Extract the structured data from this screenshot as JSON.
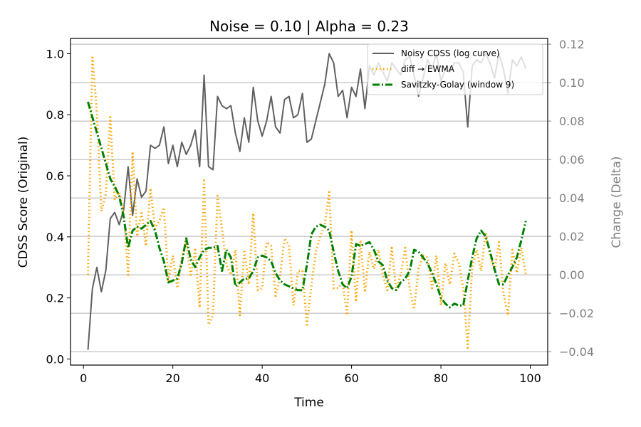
{
  "title": "Noise = 0.10 | Alpha = 0.23",
  "chart_data": {
    "type": "line",
    "title": "Noise = 0.10 | Alpha = 0.23",
    "xlabel": "Time",
    "ylabel_left": "CDSS Score (Original)",
    "ylabel_right": "Change (Delta)",
    "xlim": [
      -2.9,
      103.9
    ],
    "ylim_left": [
      -0.02,
      1.05
    ],
    "ylim_right": [
      -0.047,
      0.123
    ],
    "x_ticks": [
      0,
      20,
      40,
      60,
      80,
      100
    ],
    "y_ticks_left": [
      0.0,
      0.2,
      0.4,
      0.6,
      0.8,
      1.0
    ],
    "y_ticks_right": [
      -0.04,
      -0.02,
      0.0,
      0.02,
      0.04,
      0.06,
      0.08,
      0.1,
      0.12
    ],
    "y_tick_labels_left": [
      "0.0",
      "0.2",
      "0.4",
      "0.6",
      "0.8",
      "1.0"
    ],
    "y_tick_labels_right": [
      "−0.04",
      "−0.02",
      "0.00",
      "0.02",
      "0.04",
      "0.06",
      "0.08",
      "0.10",
      "0.12"
    ],
    "grid": "right-axis horizontal gridlines",
    "legend_position": "top-right",
    "series": [
      {
        "name": "Noisy CDSS (log curve)",
        "axis": "left",
        "color": "#606060",
        "style": "solid",
        "x": [
          1,
          2,
          3,
          4,
          5,
          6,
          7,
          8,
          9,
          10,
          11,
          12,
          13,
          14,
          15,
          16,
          17,
          18,
          19,
          20,
          21,
          22,
          23,
          24,
          25,
          26,
          27,
          28,
          29,
          30,
          31,
          32,
          33,
          34,
          35,
          36,
          37,
          38,
          39,
          40,
          41,
          42,
          43,
          44,
          45,
          46,
          47,
          48,
          49,
          50,
          51,
          52,
          53,
          54,
          55,
          56,
          57,
          58,
          59,
          60,
          61,
          62,
          63,
          64,
          65,
          66,
          67,
          68,
          69,
          70,
          71,
          72,
          73,
          74,
          75,
          76,
          77,
          78,
          79,
          80,
          81,
          82,
          83,
          84,
          85,
          86,
          87,
          88,
          89,
          90,
          91,
          92,
          93,
          94,
          95,
          96,
          97,
          98,
          99
        ],
        "values": [
          0.03,
          0.23,
          0.3,
          0.22,
          0.29,
          0.46,
          0.48,
          0.44,
          0.49,
          0.63,
          0.47,
          0.59,
          0.53,
          0.55,
          0.7,
          0.69,
          0.7,
          0.76,
          0.64,
          0.7,
          0.63,
          0.71,
          0.67,
          0.7,
          0.75,
          0.63,
          0.93,
          0.63,
          0.62,
          0.86,
          0.83,
          0.82,
          0.83,
          0.74,
          0.68,
          0.79,
          0.71,
          0.89,
          0.78,
          0.73,
          0.78,
          0.86,
          0.76,
          0.74,
          0.85,
          0.86,
          0.79,
          0.8,
          0.87,
          0.71,
          0.72,
          0.78,
          0.84,
          0.9,
          1.0,
          0.97,
          0.86,
          0.88,
          0.79,
          0.89,
          0.86,
          0.95,
          0.82,
          0.96,
          0.93,
          0.97,
          0.94,
          0.91,
          0.97,
          0.95,
          0.93,
          0.98,
          0.99,
          0.93,
          0.86,
          0.92,
          0.98,
          0.95,
          1.0,
          0.91,
          0.95,
          0.94,
          0.97,
          0.97,
          0.94,
          0.76,
          0.96,
          0.98,
          0.97,
          1.0,
          0.97,
          0.92,
          1.0,
          0.95,
          0.87,
          0.98,
          0.96,
          0.99,
          0.95
        ]
      },
      {
        "name": "diff → EWMA",
        "axis": "right",
        "color": "#FFA500",
        "style": "dotted",
        "x": [
          1,
          2,
          3,
          4,
          5,
          6,
          7,
          8,
          9,
          10,
          11,
          12,
          13,
          14,
          15,
          16,
          17,
          18,
          19,
          20,
          21,
          22,
          23,
          24,
          25,
          26,
          27,
          28,
          29,
          30,
          31,
          32,
          33,
          34,
          35,
          36,
          37,
          38,
          39,
          40,
          41,
          42,
          43,
          44,
          45,
          46,
          47,
          48,
          49,
          50,
          51,
          52,
          53,
          54,
          55,
          56,
          57,
          58,
          59,
          60,
          61,
          62,
          63,
          64,
          65,
          66,
          67,
          68,
          69,
          70,
          71,
          72,
          73,
          74,
          75,
          76,
          77,
          78,
          79,
          80,
          81,
          82,
          83,
          84,
          85,
          86,
          87,
          88,
          89,
          90,
          91,
          92,
          93,
          94,
          95,
          96,
          97,
          98,
          99
        ],
        "values": [
          0.0,
          0.114,
          0.085,
          0.033,
          0.042,
          0.082,
          0.039,
          0.043,
          0.033,
          0.0,
          0.064,
          0.02,
          0.033,
          0.015,
          0.045,
          0.024,
          0.028,
          0.035,
          -0.003,
          0.01,
          -0.007,
          0.009,
          0.017,
          0.0,
          0.013,
          -0.017,
          0.049,
          -0.026,
          -0.021,
          0.041,
          0.024,
          0.005,
          0.0,
          0.013,
          -0.021,
          0.013,
          -0.005,
          0.032,
          -0.008,
          -0.007,
          0.017,
          0.015,
          -0.011,
          -0.001,
          0.019,
          0.015,
          -0.016,
          0.002,
          0.002,
          -0.026,
          -0.006,
          0.012,
          0.02,
          0.026,
          0.043,
          -0.007,
          -0.007,
          -0.004,
          -0.021,
          0.023,
          -0.014,
          0.018,
          -0.009,
          0.012,
          0.003,
          0.013,
          0.0,
          -0.008,
          0.014,
          -0.008,
          0.0,
          0.014,
          -0.007,
          -0.018,
          0.003,
          0.01,
          0.009,
          -0.007,
          0.01,
          -0.016,
          0.006,
          -0.005,
          0.011,
          0.006,
          -0.007,
          -0.038,
          0.004,
          0.013,
          0.002,
          0.022,
          0.01,
          0.002,
          0.017,
          -0.01,
          -0.021,
          0.013,
          0.001,
          0.014,
          0.0
        ]
      },
      {
        "name": "Savitzky-Golay (window 9)",
        "axis": "right",
        "color": "#008000",
        "style": "dashdot",
        "x": [
          1,
          2,
          3,
          4,
          5,
          6,
          7,
          8,
          9,
          10,
          11,
          12,
          13,
          14,
          15,
          16,
          17,
          18,
          19,
          20,
          21,
          22,
          23,
          24,
          25,
          26,
          27,
          28,
          29,
          30,
          31,
          32,
          33,
          34,
          35,
          36,
          37,
          38,
          39,
          40,
          41,
          42,
          43,
          44,
          45,
          46,
          47,
          48,
          49,
          50,
          51,
          52,
          53,
          54,
          55,
          56,
          57,
          58,
          59,
          60,
          61,
          62,
          63,
          64,
          65,
          66,
          67,
          68,
          69,
          70,
          71,
          72,
          73,
          74,
          75,
          76,
          77,
          78,
          79,
          80,
          81,
          82,
          83,
          84,
          85,
          86,
          87,
          88,
          89,
          90,
          91,
          92,
          93,
          94,
          95,
          96,
          97,
          98,
          99
        ],
        "values": [
          0.09,
          0.082,
          0.074,
          0.066,
          0.058,
          0.05,
          0.046,
          0.041,
          0.03,
          0.014,
          0.023,
          0.025,
          0.024,
          0.026,
          0.028,
          0.023,
          0.014,
          0.007,
          -0.004,
          -0.003,
          -0.002,
          0.006,
          0.019,
          0.008,
          0.004,
          0.009,
          0.013,
          0.014,
          0.014,
          0.015,
          0.002,
          0.013,
          0.009,
          -0.006,
          -0.004,
          -0.002,
          -0.002,
          0.002,
          0.009,
          0.01,
          0.009,
          0.007,
          0.001,
          -0.003,
          -0.005,
          -0.006,
          -0.007,
          -0.008,
          -0.008,
          0.005,
          0.021,
          0.025,
          0.026,
          0.025,
          0.023,
          0.012,
          0.002,
          -0.005,
          -0.007,
          -0.001,
          0.016,
          0.015,
          0.016,
          0.017,
          0.013,
          0.007,
          0.005,
          -0.003,
          -0.007,
          -0.008,
          -0.004,
          -0.002,
          0.002,
          0.013,
          0.012,
          0.009,
          0.006,
          0.001,
          -0.005,
          -0.012,
          -0.015,
          -0.017,
          -0.015,
          -0.016,
          -0.016,
          -0.003,
          0.009,
          0.019,
          0.023,
          0.02,
          0.012,
          0.003,
          -0.005,
          -0.005,
          0.0,
          0.004,
          0.009,
          0.018,
          0.028
        ]
      }
    ]
  }
}
